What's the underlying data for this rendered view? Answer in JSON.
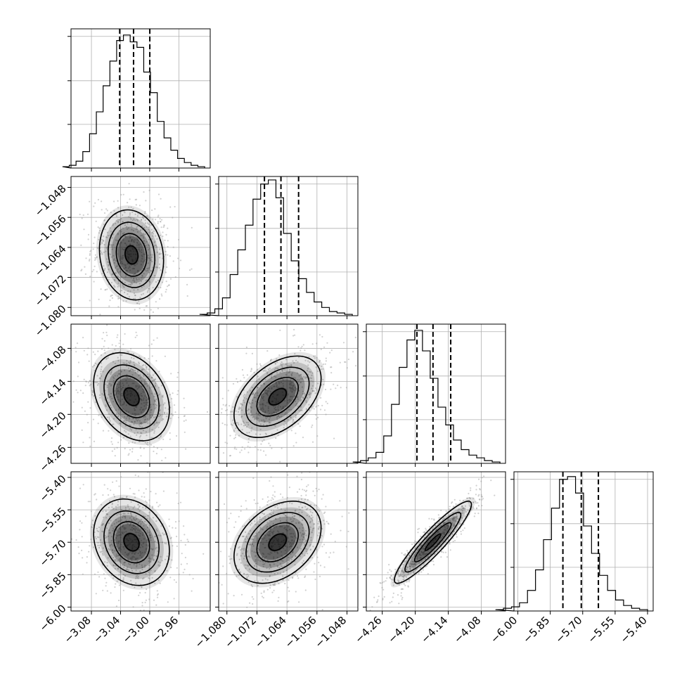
{
  "chart_data": {
    "type": "corner",
    "parameters": [
      {
        "range": [
          -3.108,
          -2.917
        ],
        "ticks": [
          "−3.08",
          "−3.04",
          "−3.00",
          "−2.96"
        ],
        "tick_values": [
          -3.08,
          -3.04,
          -3.0,
          -2.96
        ],
        "quantiles": [
          -3.0412,
          -3.0222,
          -2.9999
        ],
        "histogram": [
          0.01,
          0.02,
          0.05,
          0.12,
          0.25,
          0.41,
          0.6,
          0.78,
          0.93,
          0.97,
          0.92,
          0.88,
          0.7,
          0.55,
          0.34,
          0.22,
          0.13,
          0.07,
          0.04,
          0.02,
          0.01
        ]
      },
      {
        "range": [
          -1.0822,
          -1.0451
        ],
        "ticks": [
          "−1.080",
          "−1.072",
          "−1.064",
          "−1.056",
          "−1.048"
        ],
        "tick_values": [
          -1.08,
          -1.072,
          -1.064,
          -1.056,
          -1.048
        ],
        "quantiles": [
          -1.07,
          -1.0656,
          -1.0609
        ],
        "histogram": [
          0.01,
          0.02,
          0.05,
          0.13,
          0.3,
          0.48,
          0.66,
          0.85,
          0.96,
          0.99,
          0.86,
          0.6,
          0.4,
          0.27,
          0.17,
          0.1,
          0.06,
          0.03,
          0.02,
          0.01
        ]
      },
      {
        "range": [
          -4.289,
          -4.036
        ],
        "ticks": [
          "−4.26",
          "−4.20",
          "−4.14",
          "−4.08"
        ],
        "tick_values": [
          -4.26,
          -4.2,
          -4.14,
          -4.08
        ],
        "quantiles": [
          -4.197,
          -4.1678,
          -4.1356
        ],
        "histogram": [
          0.01,
          0.02,
          0.04,
          0.08,
          0.2,
          0.43,
          0.7,
          0.9,
          0.97,
          0.82,
          0.62,
          0.41,
          0.28,
          0.17,
          0.1,
          0.06,
          0.04,
          0.02,
          0.01
        ]
      },
      {
        "range": [
          -6.018,
          -5.374
        ],
        "ticks": [
          "−6.00",
          "−5.85",
          "−5.70",
          "−5.55",
          "−5.40"
        ],
        "tick_values": [
          -6.0,
          -5.85,
          -5.7,
          -5.55,
          -5.4
        ],
        "quantiles": [
          -5.7916,
          -5.7066,
          -5.6274
        ],
        "histogram": [
          0.01,
          0.02,
          0.03,
          0.06,
          0.15,
          0.3,
          0.52,
          0.75,
          0.96,
          0.98,
          0.86,
          0.62,
          0.42,
          0.26,
          0.15,
          0.08,
          0.04,
          0.02,
          0.01
        ]
      }
    ],
    "pairs": [
      {
        "row": 1,
        "col": 0,
        "peak": [
          -3.025,
          -1.066
        ],
        "spread": [
          0.022,
          0.006
        ],
        "corr": -0.12
      },
      {
        "row": 2,
        "col": 0,
        "peak": [
          -3.025,
          -4.168
        ],
        "spread": [
          0.026,
          0.04
        ],
        "corr": -0.3
      },
      {
        "row": 2,
        "col": 1,
        "peak": [
          -1.0665,
          -4.168
        ],
        "spread": [
          0.0058,
          0.037
        ],
        "corr": 0.45
      },
      {
        "row": 3,
        "col": 0,
        "peak": [
          -3.025,
          -5.7
        ],
        "spread": [
          0.026,
          0.1
        ],
        "corr": -0.2
      },
      {
        "row": 3,
        "col": 1,
        "peak": [
          -1.0665,
          -5.7
        ],
        "spread": [
          0.0058,
          0.095
        ],
        "corr": 0.35
      },
      {
        "row": 3,
        "col": 2,
        "peak": [
          -4.168,
          -5.7
        ],
        "spread": [
          0.035,
          0.095
        ],
        "corr": 0.92
      }
    ],
    "grid": true,
    "colors": {
      "line": "#000000",
      "grid": "#b0b0b0",
      "scatter": "#9a9a9a",
      "density": "#000000"
    }
  }
}
